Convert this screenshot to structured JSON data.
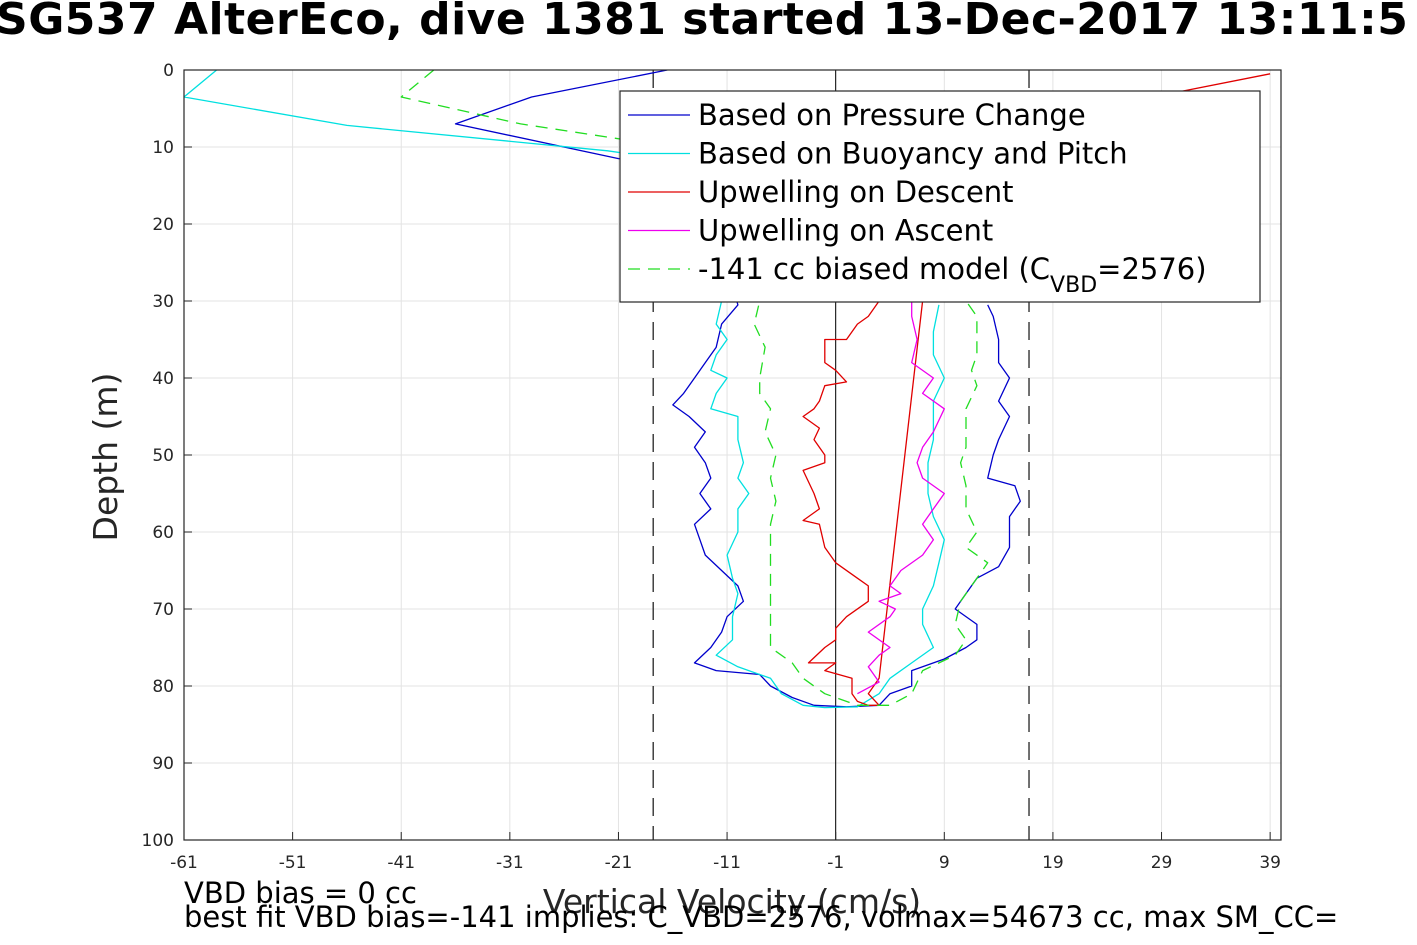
{
  "chart_data": {
    "type": "line",
    "title": "SG537 AlterEco, dive 1381 started 13-Dec-2017 13:11:5",
    "xlabel": "Vertical Velocity (cm/s)",
    "ylabel": "Depth (m)",
    "xlim": [
      -61,
      40
    ],
    "ylim": [
      0,
      100
    ],
    "y_reversed": true,
    "xticks": [
      -61,
      -51,
      -41,
      -31,
      -21,
      -11,
      -1,
      9,
      19,
      29,
      39
    ],
    "yticks": [
      0,
      10,
      20,
      30,
      40,
      50,
      60,
      70,
      80,
      90,
      100
    ],
    "grid": true,
    "legend_position": "top-right",
    "reference_lines": {
      "zero_x": -1,
      "dashed_x": [
        -17.8,
        16.8
      ]
    },
    "series": [
      {
        "name": "Based on Pressure Change",
        "color": "#0000cc",
        "dash": "solid",
        "points": [
          [
            -16.5,
            0
          ],
          [
            -29,
            3.5
          ],
          [
            -36,
            7
          ],
          [
            -21,
            11.5
          ],
          [
            -13,
            12.5
          ],
          [
            -10.5,
            28
          ],
          [
            -10,
            30.5
          ],
          [
            -11.5,
            33
          ],
          [
            -12,
            36
          ],
          [
            -13,
            38
          ],
          [
            -14,
            40
          ],
          [
            -15,
            42
          ],
          [
            -16,
            43.5
          ],
          [
            -14.5,
            45
          ],
          [
            -13,
            47
          ],
          [
            -14,
            49
          ],
          [
            -13,
            51
          ],
          [
            -12.5,
            53
          ],
          [
            -13.5,
            55
          ],
          [
            -12.5,
            57
          ],
          [
            -14,
            59
          ],
          [
            -13.5,
            61
          ],
          [
            -13,
            63
          ],
          [
            -11.5,
            65
          ],
          [
            -10,
            67
          ],
          [
            -9.5,
            69
          ],
          [
            -11,
            71
          ],
          [
            -11.5,
            73
          ],
          [
            -12.5,
            75
          ],
          [
            -14,
            77
          ],
          [
            -12,
            78
          ],
          [
            -8,
            78.5
          ],
          [
            -7,
            80
          ],
          [
            -5,
            81.5
          ],
          [
            -3,
            82.5
          ],
          [
            0,
            82.7
          ],
          [
            3,
            82.5
          ],
          [
            4,
            81
          ],
          [
            6,
            80
          ],
          [
            6,
            78
          ],
          [
            9,
            76.5
          ],
          [
            11,
            75
          ],
          [
            12,
            74
          ],
          [
            12,
            72
          ],
          [
            10,
            70
          ],
          [
            11,
            68
          ],
          [
            12,
            66
          ],
          [
            14,
            64.5
          ],
          [
            15,
            62
          ],
          [
            15,
            58
          ],
          [
            16,
            56
          ],
          [
            15.5,
            54
          ],
          [
            13,
            53
          ],
          [
            13.5,
            50
          ],
          [
            14,
            48
          ],
          [
            15,
            45
          ],
          [
            14,
            43
          ],
          [
            15,
            40
          ],
          [
            14,
            38
          ],
          [
            14,
            35
          ],
          [
            13.5,
            32
          ],
          [
            13,
            30.5
          ]
        ]
      },
      {
        "name": "Based on Buoyancy and Pitch",
        "color": "#00e0e0",
        "dash": "solid",
        "points": [
          [
            -58,
            0
          ],
          [
            -61,
            3.5
          ],
          [
            -46,
            7.2
          ],
          [
            -22,
            10.5
          ],
          [
            -12,
            12.5
          ],
          [
            -11.5,
            30
          ],
          [
            -12,
            33
          ],
          [
            -11,
            35
          ],
          [
            -12,
            37
          ],
          [
            -12.5,
            39
          ],
          [
            -11,
            40
          ],
          [
            -12,
            42
          ],
          [
            -12.5,
            44
          ],
          [
            -10,
            45
          ],
          [
            -10,
            48
          ],
          [
            -9.5,
            51
          ],
          [
            -10,
            53
          ],
          [
            -9,
            55
          ],
          [
            -10,
            57
          ],
          [
            -10,
            60
          ],
          [
            -11,
            63
          ],
          [
            -10.5,
            66
          ],
          [
            -10,
            68
          ],
          [
            -10.5,
            71
          ],
          [
            -10.5,
            74
          ],
          [
            -12,
            76
          ],
          [
            -10,
            77.5
          ],
          [
            -7,
            79
          ],
          [
            -6,
            81
          ],
          [
            -4,
            82.5
          ],
          [
            -2,
            82.8
          ],
          [
            1,
            82.7
          ],
          [
            3,
            81
          ],
          [
            4,
            79
          ],
          [
            6,
            77
          ],
          [
            8,
            75
          ],
          [
            7,
            72
          ],
          [
            7,
            70
          ],
          [
            8,
            67
          ],
          [
            8.5,
            64
          ],
          [
            9,
            61
          ],
          [
            8,
            58
          ],
          [
            7.5,
            55
          ],
          [
            7.5,
            51
          ],
          [
            8,
            48
          ],
          [
            8,
            46
          ],
          [
            8,
            43
          ],
          [
            9,
            40
          ],
          [
            8,
            37
          ],
          [
            8,
            34
          ],
          [
            8.5,
            30.5
          ]
        ]
      },
      {
        "name": "Upwelling on Descent",
        "color": "#e00000",
        "dash": "solid",
        "points": [
          [
            39,
            0.5
          ],
          [
            30,
            3
          ],
          [
            25,
            5
          ],
          [
            6,
            11
          ],
          [
            2,
            28
          ],
          [
            3,
            30
          ],
          [
            2,
            32
          ],
          [
            1,
            33
          ],
          [
            0,
            35
          ],
          [
            -2,
            35
          ],
          [
            -2,
            38
          ],
          [
            -1,
            39
          ],
          [
            0,
            40.5
          ],
          [
            -2,
            41
          ],
          [
            -2.5,
            43
          ],
          [
            -3,
            44
          ],
          [
            -4,
            45
          ],
          [
            -2.5,
            46.5
          ],
          [
            -3,
            48
          ],
          [
            -2,
            50
          ],
          [
            -2,
            51
          ],
          [
            -4,
            52
          ],
          [
            -3,
            55
          ],
          [
            -2.5,
            57
          ],
          [
            -4,
            58.5
          ],
          [
            -2.5,
            59
          ],
          [
            -2,
            62
          ],
          [
            -1,
            64
          ],
          [
            1,
            66
          ],
          [
            2,
            67
          ],
          [
            2,
            69
          ],
          [
            0,
            71
          ],
          [
            -1,
            72.5
          ],
          [
            -1,
            74
          ],
          [
            -2,
            75
          ],
          [
            -3.5,
            77
          ],
          [
            -1,
            77
          ],
          [
            -2,
            78
          ],
          [
            0.5,
            79
          ],
          [
            0.5,
            81
          ],
          [
            1,
            82
          ],
          [
            2,
            82.5
          ],
          [
            3,
            82.5
          ],
          [
            2,
            81
          ],
          [
            3,
            79
          ],
          [
            7,
            30
          ]
        ]
      },
      {
        "name": "Upwelling on Ascent",
        "color": "#ee00ee",
        "dash": "solid",
        "points": [
          [
            1,
            81
          ],
          [
            3,
            79.5
          ],
          [
            2,
            77.5
          ],
          [
            3,
            76
          ],
          [
            4,
            75
          ],
          [
            2,
            73
          ],
          [
            4,
            71
          ],
          [
            4.5,
            70
          ],
          [
            3,
            69
          ],
          [
            5,
            68
          ],
          [
            4,
            67
          ],
          [
            5,
            65
          ],
          [
            7,
            63
          ],
          [
            8,
            61
          ],
          [
            7,
            59
          ],
          [
            8,
            57
          ],
          [
            9,
            55
          ],
          [
            7,
            53
          ],
          [
            6.5,
            51
          ],
          [
            7,
            49
          ],
          [
            8,
            47
          ],
          [
            9,
            44
          ],
          [
            7,
            42
          ],
          [
            8,
            40
          ],
          [
            6,
            38
          ],
          [
            6.5,
            35
          ],
          [
            6,
            32
          ],
          [
            6,
            30
          ]
        ]
      },
      {
        "name": "-141 cc biased model",
        "color": "#22dd22",
        "dash": "dashed",
        "points": [
          [
            -38,
            0
          ],
          [
            -41,
            3.5
          ],
          [
            -30,
            7
          ],
          [
            -16,
            10
          ],
          [
            -9,
            12
          ],
          [
            -8,
            30
          ],
          [
            -8.5,
            33
          ],
          [
            -7.5,
            36
          ],
          [
            -8,
            40
          ],
          [
            -8,
            42
          ],
          [
            -7,
            44
          ],
          [
            -7.5,
            47
          ],
          [
            -6.5,
            50
          ],
          [
            -7,
            53
          ],
          [
            -6.5,
            56
          ],
          [
            -7,
            59
          ],
          [
            -7,
            63
          ],
          [
            -7,
            66
          ],
          [
            -7,
            69
          ],
          [
            -7,
            72
          ],
          [
            -7,
            75
          ],
          [
            -5,
            77
          ],
          [
            -4,
            79
          ],
          [
            -2,
            81
          ],
          [
            1,
            82.5
          ],
          [
            4,
            82.5
          ],
          [
            6,
            81
          ],
          [
            7,
            78
          ],
          [
            10,
            76
          ],
          [
            11,
            74
          ],
          [
            10,
            72
          ],
          [
            10.5,
            69
          ],
          [
            12,
            66
          ],
          [
            13,
            64
          ],
          [
            11,
            62
          ],
          [
            12,
            60
          ],
          [
            11,
            57
          ],
          [
            11,
            54
          ],
          [
            10.5,
            51
          ],
          [
            11,
            49
          ],
          [
            11,
            47
          ],
          [
            11,
            44
          ],
          [
            12,
            41
          ],
          [
            11.5,
            39
          ],
          [
            12,
            37
          ],
          [
            12,
            35
          ],
          [
            12,
            32
          ],
          [
            11,
            30
          ]
        ]
      }
    ],
    "legend_entries": [
      "Based on Pressure Change",
      "Based on Buoyancy and Pitch",
      "Upwelling on Descent",
      "Upwelling on Ascent"
    ],
    "legend_model_prefix": "-141 cc biased model (C",
    "legend_model_sub": "VBD",
    "legend_model_suffix": "=2576)",
    "annotations": [
      "VBD bias = 0 cc",
      "best fit VBD bias=-141 implies: C_VBD=2576, volmax=54673 cc, max SM_CC="
    ]
  }
}
